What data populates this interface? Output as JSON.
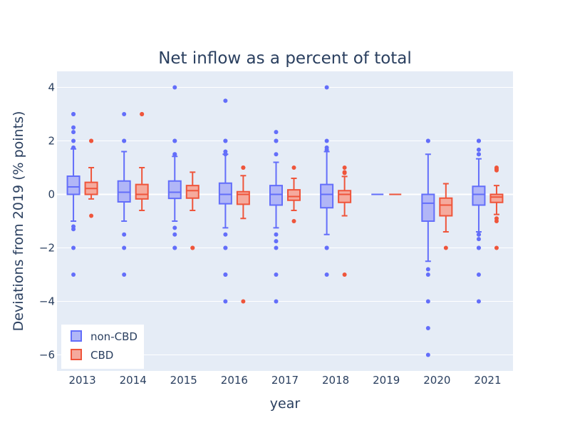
{
  "chart_data": {
    "type": "box",
    "title": "Net inflow as a percent of total",
    "xlabel": "year",
    "ylabel": "Deviations from 2019 (% points)",
    "categories": [
      "2013",
      "2014",
      "2015",
      "2016",
      "2017",
      "2018",
      "2019",
      "2020",
      "2021"
    ],
    "ylim": [
      -6.6,
      4.6
    ],
    "yticks": [
      -6,
      -4,
      -2,
      0,
      2,
      4
    ],
    "grid": true,
    "legend_position": "bottom-left",
    "colors": {
      "plot_bg": "#e5ecf6",
      "grid": "#ffffff",
      "text": "#2a3f5f"
    },
    "series": [
      {
        "name": "non-CBD",
        "line_color": "#636efa",
        "fill_color": "#b1b6f7",
        "boxes": [
          {
            "q1": 0.0,
            "median": 0.28,
            "q3": 0.68,
            "lower_fence": -1.0,
            "upper_fence": 1.7,
            "outliers": [
              3.0,
              3.0,
              2.5,
              2.33,
              2.0,
              1.75,
              -1.2,
              -1.3,
              -2.0,
              -3.0
            ]
          },
          {
            "q1": -0.28,
            "median": 0.08,
            "q3": 0.5,
            "lower_fence": -1.0,
            "upper_fence": 1.6,
            "outliers": [
              3.0,
              2.0,
              2.0,
              -1.5,
              -2.0,
              -3.0
            ]
          },
          {
            "q1": -0.15,
            "median": 0.08,
            "q3": 0.5,
            "lower_fence": -1.0,
            "upper_fence": 1.42,
            "outliers": [
              4.0,
              2.0,
              2.0,
              1.5,
              1.5,
              -1.25,
              -1.5,
              -2.0,
              -2.0
            ]
          },
          {
            "q1": -0.35,
            "median": 0.0,
            "q3": 0.42,
            "lower_fence": -1.25,
            "upper_fence": 1.5,
            "outliers": [
              3.5,
              2.0,
              2.0,
              1.6,
              1.5,
              -1.5,
              -2.0,
              -2.0,
              -3.0,
              -3.0,
              -4.0
            ]
          },
          {
            "q1": -0.4,
            "median": 0.0,
            "q3": 0.33,
            "lower_fence": -1.25,
            "upper_fence": 1.2,
            "outliers": [
              2.33,
              2.0,
              2.0,
              1.5,
              -1.5,
              -1.75,
              -2.0,
              -3.0,
              -4.0
            ]
          },
          {
            "q1": -0.5,
            "median": 0.0,
            "q3": 0.37,
            "lower_fence": -1.5,
            "upper_fence": 1.6,
            "outliers": [
              4.0,
              2.0,
              1.75,
              1.67,
              -2.0,
              -2.0,
              -3.0
            ]
          },
          {
            "q1": 0.0,
            "median": 0.0,
            "q3": 0.0,
            "lower_fence": 0.0,
            "upper_fence": 0.0,
            "outliers": []
          },
          {
            "q1": -1.0,
            "median": -0.33,
            "q3": 0.0,
            "lower_fence": -2.5,
            "upper_fence": 1.5,
            "outliers": [
              2.0,
              2.0,
              -2.8,
              -3.0,
              -4.0,
              -5.0,
              -6.0
            ]
          },
          {
            "q1": -0.4,
            "median": 0.0,
            "q3": 0.3,
            "lower_fence": -1.4,
            "upper_fence": 1.33,
            "outliers": [
              2.0,
              2.0,
              2.0,
              1.67,
              1.5,
              1.5,
              -1.5,
              -1.5,
              -1.67,
              -2.0,
              -2.0,
              -3.0,
              -4.0
            ]
          }
        ]
      },
      {
        "name": "CBD",
        "line_color": "#ef553b",
        "fill_color": "#f5aa9d",
        "boxes": [
          {
            "q1": 0.0,
            "median": 0.22,
            "q3": 0.45,
            "lower_fence": -0.17,
            "upper_fence": 1.0,
            "outliers": [
              2.0,
              2.0,
              -0.8
            ]
          },
          {
            "q1": -0.17,
            "median": 0.0,
            "q3": 0.37,
            "lower_fence": -0.6,
            "upper_fence": 1.0,
            "outliers": [
              3.0,
              3.0
            ]
          },
          {
            "q1": -0.14,
            "median": 0.14,
            "q3": 0.33,
            "lower_fence": -0.6,
            "upper_fence": 0.83,
            "outliers": [
              -2.0,
              -2.0
            ]
          },
          {
            "q1": -0.37,
            "median": 0.0,
            "q3": 0.1,
            "lower_fence": -0.9,
            "upper_fence": 0.7,
            "outliers": [
              1.0,
              1.0,
              -4.0
            ]
          },
          {
            "q1": -0.22,
            "median": -0.08,
            "q3": 0.17,
            "lower_fence": -0.6,
            "upper_fence": 0.6,
            "outliers": [
              1.0,
              -1.0
            ]
          },
          {
            "q1": -0.3,
            "median": 0.0,
            "q3": 0.14,
            "lower_fence": -0.8,
            "upper_fence": 0.67,
            "outliers": [
              1.0,
              0.83,
              0.8,
              -3.0
            ]
          },
          {
            "q1": 0.0,
            "median": 0.0,
            "q3": 0.0,
            "lower_fence": 0.0,
            "upper_fence": 0.0,
            "outliers": []
          },
          {
            "q1": -0.8,
            "median": -0.4,
            "q3": -0.14,
            "lower_fence": -1.4,
            "upper_fence": 0.4,
            "outliers": [
              -2.0
            ]
          },
          {
            "q1": -0.3,
            "median": -0.1,
            "q3": 0.0,
            "lower_fence": -0.75,
            "upper_fence": 0.33,
            "outliers": [
              1.0,
              0.95,
              0.9,
              -0.9,
              -1.0,
              -2.0
            ]
          }
        ]
      }
    ]
  }
}
